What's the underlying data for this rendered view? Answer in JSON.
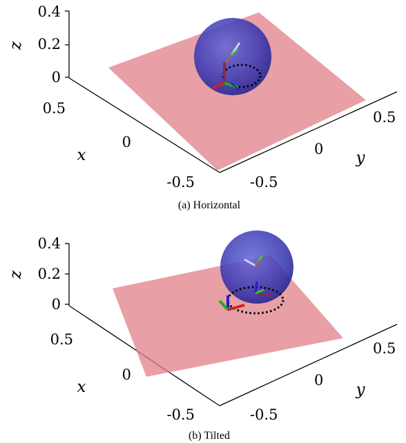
{
  "figure": {
    "panels": [
      {
        "caption": "(a) Horizontal",
        "z_label": "z",
        "x_label": "x",
        "y_label": "y",
        "z_ticks": [
          "0.4",
          "0.2",
          "0"
        ],
        "x_ticks": [
          "0.5",
          "0",
          "-0.5"
        ],
        "y_ticks": [
          "-0.5",
          "0",
          "0.5"
        ]
      },
      {
        "caption": "(b) Tilted",
        "z_label": "z",
        "x_label": "x",
        "y_label": "y",
        "z_ticks": [
          "0.4",
          "0.2",
          "0"
        ],
        "x_ticks": [
          "0.5",
          "0",
          "-0.5"
        ],
        "y_ticks": [
          "-0.5",
          "0",
          "0.5"
        ]
      }
    ],
    "colors": {
      "plane": "#e07f87",
      "sphere": "#2e2eaa",
      "frame_x": "#d02020",
      "frame_y": "#22aa22",
      "frame_z": "#2020c0",
      "path": "#000000"
    }
  }
}
